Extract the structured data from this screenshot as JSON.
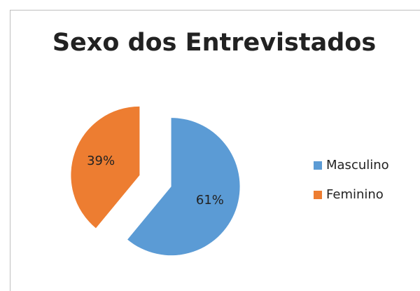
{
  "chart_data": {
    "type": "pie",
    "title": "Sexo dos Entrevistados",
    "categories": [
      "Masculino",
      "Feminino"
    ],
    "values": [
      61,
      39
    ],
    "value_labels": [
      "61%",
      "39%"
    ],
    "colors": [
      "#5b9bd5",
      "#ed7d31"
    ],
    "legend": "right"
  }
}
